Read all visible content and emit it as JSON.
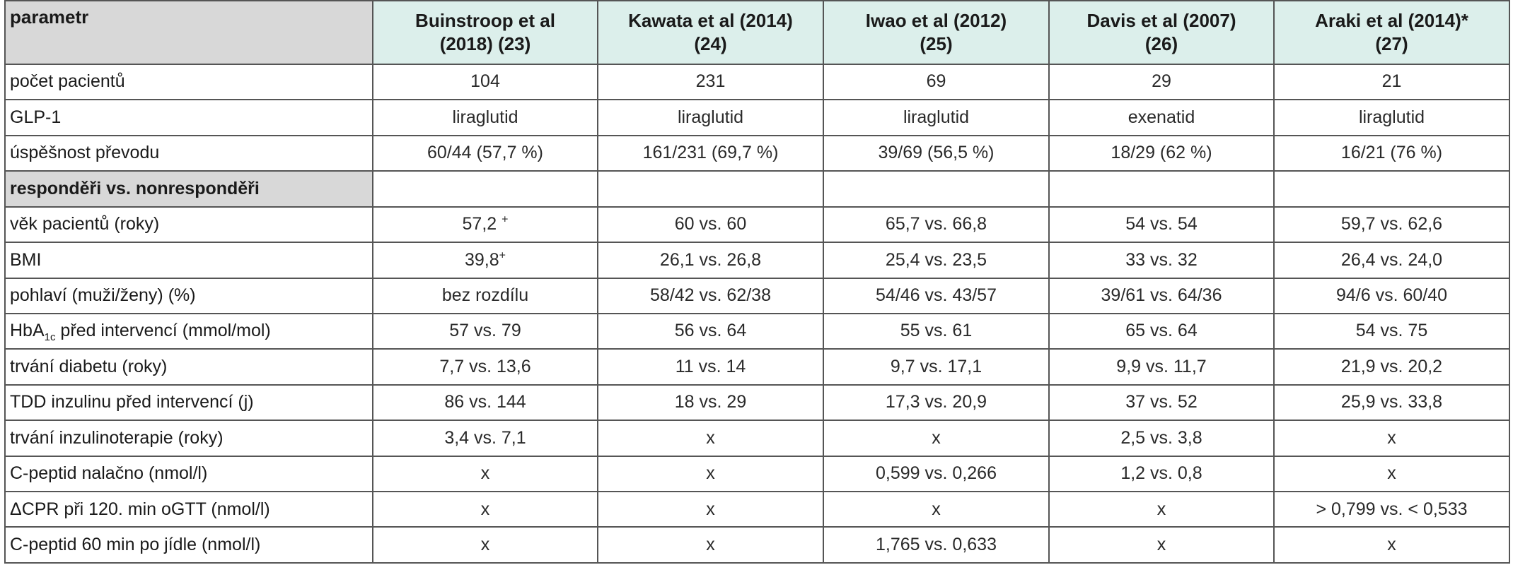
{
  "table": {
    "header": {
      "param": "parametr",
      "studies": [
        {
          "line1": "Buinstroop et al",
          "line2": "(2018) (23)"
        },
        {
          "line1": "Kawata et al (2014)",
          "line2": "(24)"
        },
        {
          "line1": "Iwao et al (2012)",
          "line2": "(25)"
        },
        {
          "line1": "Davis et al (2007)",
          "line2": "(26)"
        },
        {
          "line1": "Araki et al (2014)*",
          "line2": "(27)"
        }
      ]
    },
    "top_rows": [
      {
        "label": "počet pacientů",
        "values": [
          "104",
          "231",
          "69",
          "29",
          "21"
        ]
      },
      {
        "label": "GLP-1",
        "values": [
          "liraglutid",
          "liraglutid",
          "liraglutid",
          "exenatid",
          "liraglutid"
        ]
      },
      {
        "label": "úspěšnost převodu",
        "values": [
          "60/44 (57,7 %)",
          "161/231 (69,7 %)",
          "39/69 (56,5 %)",
          "18/29 (62 %)",
          "16/21 (76 %)"
        ]
      }
    ],
    "section_label": "responděři vs. nonresponděři",
    "age": {
      "label": "věk pacientů (roky)",
      "v1": "57,2",
      "v1_sup": "+",
      "values": [
        "60 vs. 60",
        "65,7 vs. 66,8",
        "54 vs. 54",
        "59,7 vs. 62,6"
      ]
    },
    "bmi": {
      "label": "BMI",
      "v1": "39,8",
      "v1_sup": "+",
      "values": [
        "26,1 vs. 26,8",
        "25,4 vs. 23,5",
        "33 vs. 32",
        "26,4 vs. 24,0"
      ]
    },
    "sex": {
      "label": "pohlaví (muži/ženy) (%)",
      "values": [
        "bez rozdílu",
        "58/42 vs. 62/38",
        "54/46 vs. 43/57",
        "39/61 vs. 64/36",
        "94/6 vs. 60/40"
      ]
    },
    "hba": {
      "label_pre": "HbA",
      "label_sub": "1c",
      "label_post": " před intervencí (mmol/mol)",
      "values": [
        "57 vs. 79",
        "56 vs. 64",
        "55 vs. 61",
        "65 vs. 64",
        "54 vs. 75"
      ]
    },
    "bottom_rows": [
      {
        "label": "trvání diabetu (roky)",
        "values": [
          "7,7 vs. 13,6",
          "11 vs. 14",
          "9,7 vs. 17,1",
          "9,9 vs. 11,7",
          "21,9 vs. 20,2"
        ]
      },
      {
        "label": "TDD inzulinu před intervencí (j)",
        "values": [
          "86 vs. 144",
          "18 vs. 29",
          "17,3 vs. 20,9",
          "37 vs. 52",
          "25,9 vs. 33,8"
        ]
      },
      {
        "label": "trvání inzulinoterapie (roky)",
        "values": [
          "3,4 vs. 7,1",
          "x",
          "x",
          "2,5 vs. 3,8",
          "x"
        ]
      },
      {
        "label": "C-peptid nalačno (nmol/l)",
        "values": [
          "x",
          "x",
          "0,599 vs. 0,266",
          "1,2 vs. 0,8",
          "x"
        ]
      },
      {
        "label": "ΔCPR při 120. min oGTT (nmol/l)",
        "values": [
          "x",
          "x",
          "x",
          "x",
          "> 0,799 vs. < 0,533"
        ]
      },
      {
        "label": "C-peptid 60 min po jídle (nmol/l)",
        "values": [
          "x",
          "x",
          "1,765 vs. 0,633",
          "x",
          "x"
        ]
      }
    ]
  }
}
